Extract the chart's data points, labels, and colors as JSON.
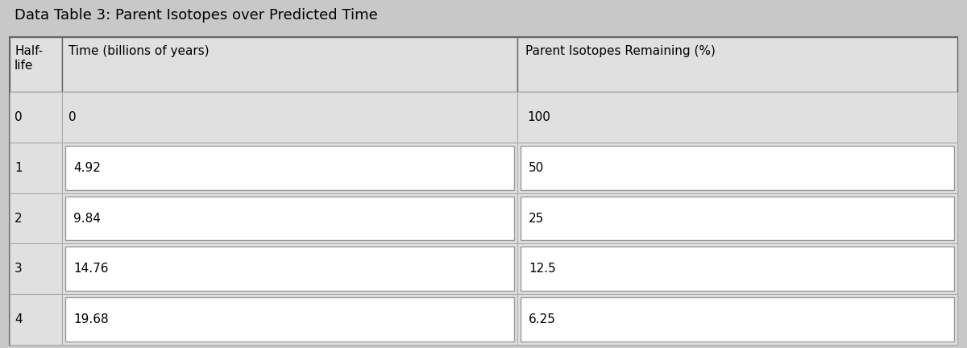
{
  "title": "Data Table 3: Parent Isotopes over Predicted Time",
  "col1_header_line1": "Half-",
  "col1_header_line2": "life",
  "col2_header": "Time (billions of years)",
  "col3_header": "Parent Isotopes Remaining (%)",
  "rows": [
    {
      "halflife": "0",
      "time": "0",
      "remaining": "100"
    },
    {
      "halflife": "1",
      "time": "4.92",
      "remaining": "50"
    },
    {
      "halflife": "2",
      "time": "9.84",
      "remaining": "25"
    },
    {
      "halflife": "3",
      "time": "14.76",
      "remaining": "12.5"
    },
    {
      "halflife": "4",
      "time": "19.68",
      "remaining": "6.25"
    }
  ],
  "bg_color": "#c8c8c8",
  "table_bg_color": "#e0e0e0",
  "row0_bg_color": "#e8e8e8",
  "input_box_color": "#ffffff",
  "input_box_border": "#999999",
  "outer_border_color": "#666666",
  "row_border_color": "#aaaaaa",
  "title_fontsize": 13,
  "header_fontsize": 11,
  "cell_fontsize": 11,
  "title_color": "#000000",
  "text_color": "#000000",
  "fig_width": 12.0,
  "fig_height": 4.32,
  "dpi": 100
}
